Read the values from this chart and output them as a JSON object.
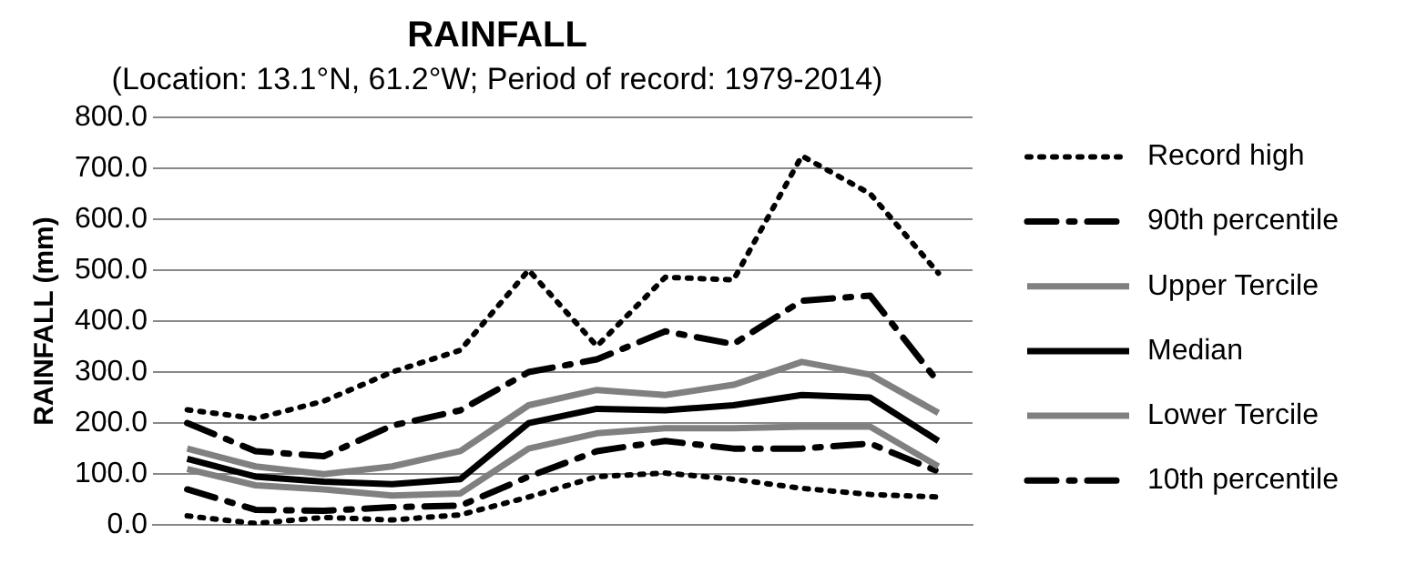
{
  "chart_data": {
    "type": "line",
    "title": "RAINFALL",
    "subtitle": "(Location: 13.1°N, 61.2°W; Period of record: 1979-2014)",
    "ylabel": "RAINFALL (mm)",
    "categories": [
      null,
      null,
      null,
      null,
      null,
      null,
      null,
      null,
      null,
      null,
      null,
      null
    ],
    "ylim": [
      0,
      800
    ],
    "yticks": [
      {
        "value": 0,
        "label": "0.0"
      },
      {
        "value": 100,
        "label": "100.0"
      },
      {
        "value": 200,
        "label": "200.0"
      },
      {
        "value": 300,
        "label": "300.0"
      },
      {
        "value": 400,
        "label": "400.0"
      },
      {
        "value": 500,
        "label": "500.0"
      },
      {
        "value": 600,
        "label": "600.0"
      },
      {
        "value": 700,
        "label": "700.0"
      },
      {
        "value": 800,
        "label": "800.0"
      }
    ],
    "grid": "y",
    "legend": "right",
    "marker": "none",
    "series": [
      {
        "name": "Record high",
        "color": "#000000",
        "line_style": "dotted",
        "values": [
          226,
          209,
          243,
          300,
          343,
          500,
          351,
          486,
          481,
          724,
          650,
          494
        ]
      },
      {
        "name": "90th percentile",
        "color": "#000000",
        "line_style": "dashed",
        "values": [
          200,
          145,
          135,
          195,
          225,
          300,
          325,
          380,
          355,
          440,
          450,
          280
        ]
      },
      {
        "name": "Upper Tercile",
        "color": "#808080",
        "line_style": "solid",
        "values": [
          150,
          115,
          100,
          115,
          145,
          235,
          265,
          255,
          275,
          320,
          295,
          220
        ]
      },
      {
        "name": "Median",
        "color": "#000000",
        "line_style": "solid",
        "values": [
          130,
          95,
          85,
          80,
          90,
          200,
          228,
          225,
          235,
          255,
          250,
          165
        ]
      },
      {
        "name": "Lower Tercile",
        "color": "#808080",
        "line_style": "solid",
        "values": [
          110,
          78,
          70,
          58,
          62,
          150,
          180,
          190,
          190,
          193,
          193,
          115
        ]
      },
      {
        "name": "10th percentile",
        "color": "#000000",
        "line_style": "dashed",
        "values": [
          70,
          30,
          28,
          35,
          38,
          95,
          145,
          165,
          150,
          150,
          160,
          105
        ]
      },
      {
        "color": "#000000",
        "line_style": "dotted",
        "values": [
          18,
          3,
          15,
          10,
          20,
          55,
          95,
          102,
          90,
          72,
          60,
          55
        ]
      }
    ]
  }
}
